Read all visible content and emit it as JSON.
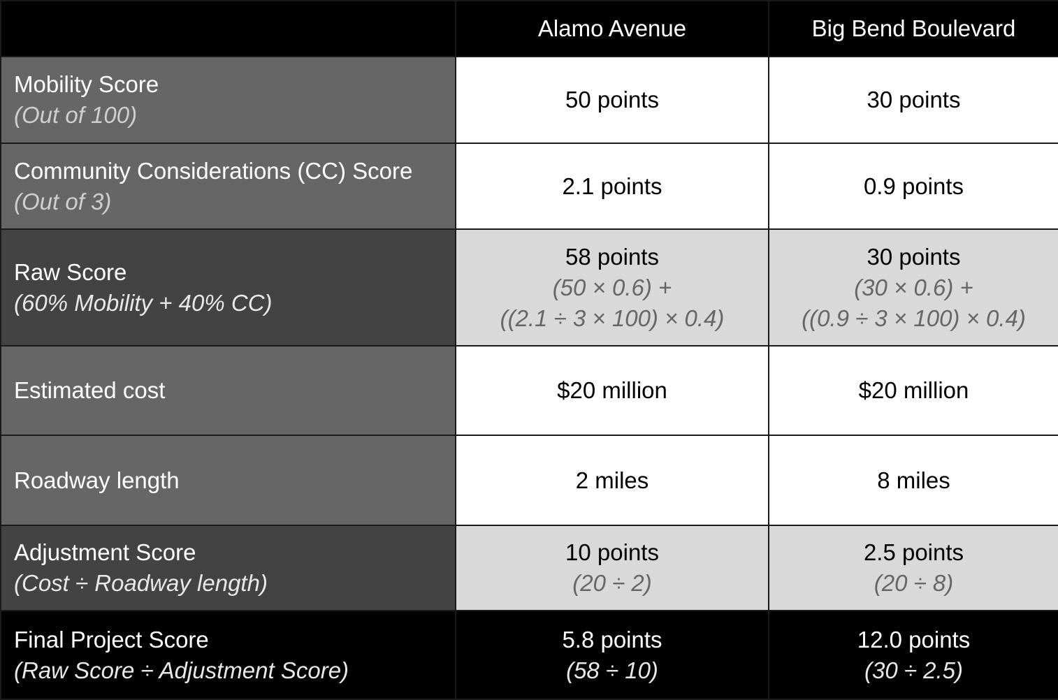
{
  "columns": {
    "col0": "",
    "col1": "Alamo Avenue",
    "col2": "Big Bend Boulevard"
  },
  "rows": [
    {
      "label": "Mobility Score",
      "label_sub": "(Out of 100)",
      "alamo": {
        "value": "50 points"
      },
      "bigbend": {
        "value": "30 points"
      }
    },
    {
      "label": "Community Considerations (CC) Score",
      "label_sub": "(Out of 3)",
      "alamo": {
        "value": "2.1 points"
      },
      "bigbend": {
        "value": "0.9 points"
      }
    },
    {
      "label": "Raw Score",
      "label_sub": "(60% Mobility + 40% CC)",
      "alamo": {
        "value": "58 points",
        "formula_1": "(50 × 0.6) +",
        "formula_2": "((2.1 ÷ 3 × 100) × 0.4)"
      },
      "bigbend": {
        "value": "30 points",
        "formula_1": "(30 × 0.6) +",
        "formula_2": "((0.9 ÷ 3 × 100) × 0.4)"
      }
    },
    {
      "label": "Estimated cost",
      "alamo": {
        "value": "$20 million"
      },
      "bigbend": {
        "value": "$20 million"
      }
    },
    {
      "label": "Roadway length",
      "alamo": {
        "value": "2 miles"
      },
      "bigbend": {
        "value": "8 miles"
      }
    },
    {
      "label": "Adjustment Score",
      "label_sub": "(Cost ÷ Roadway length)",
      "alamo": {
        "value": "10 points",
        "formula_1": "(20 ÷ 2)"
      },
      "bigbend": {
        "value": "2.5 points",
        "formula_1": "(20 ÷ 8)"
      }
    },
    {
      "label": "Final Project Score",
      "label_sub": "(Raw Score ÷ Adjustment Score)",
      "alamo": {
        "value": "5.8 points",
        "formula_1": "(58 ÷ 10)"
      },
      "bigbend": {
        "value": "12.0 points",
        "formula_1": "(30 ÷ 2.5)"
      }
    }
  ],
  "colors": {
    "header_bg": "#000000",
    "label_bg_mid": "#666666",
    "label_bg_dark": "#434343",
    "value_bg_light": "#ffffff",
    "value_bg_shaded": "#d9d9d9",
    "final_bg": "#000000"
  }
}
